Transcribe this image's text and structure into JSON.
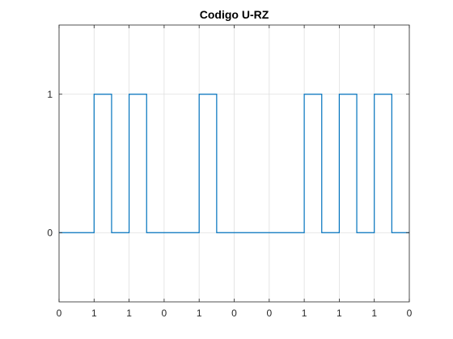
{
  "chart_data": {
    "type": "line",
    "title": "Codigo U-RZ",
    "xlabel": "",
    "ylabel": "",
    "xlim": [
      0,
      10
    ],
    "ylim": [
      -0.5,
      1.5
    ],
    "grid": true,
    "legend": "none",
    "line_color": "#0072BD",
    "xticks": [
      0,
      1,
      2,
      3,
      4,
      5,
      6,
      7,
      8,
      9,
      10
    ],
    "xtick_labels": [
      "0",
      "1",
      "1",
      "0",
      "1",
      "0",
      "0",
      "1",
      "1",
      "1",
      "0"
    ],
    "yticks": [
      0,
      1
    ],
    "ytick_labels": [
      "0",
      "1"
    ],
    "bits": [
      0,
      1,
      1,
      0,
      1,
      0,
      0,
      1,
      1,
      1
    ],
    "series": [
      {
        "x": [
          0,
          1,
          1,
          1.5,
          1.5,
          2,
          2,
          2.5,
          2.5,
          4,
          4,
          4.5,
          4.5,
          7,
          7,
          7.5,
          7.5,
          8,
          8,
          8.5,
          8.5,
          9,
          9,
          9.5,
          9.5,
          10
        ],
        "y": [
          0,
          0,
          1,
          1,
          0,
          0,
          1,
          1,
          0,
          0,
          1,
          1,
          0,
          0,
          1,
          1,
          0,
          0,
          1,
          1,
          0,
          0,
          1,
          1,
          0,
          0
        ]
      }
    ]
  }
}
